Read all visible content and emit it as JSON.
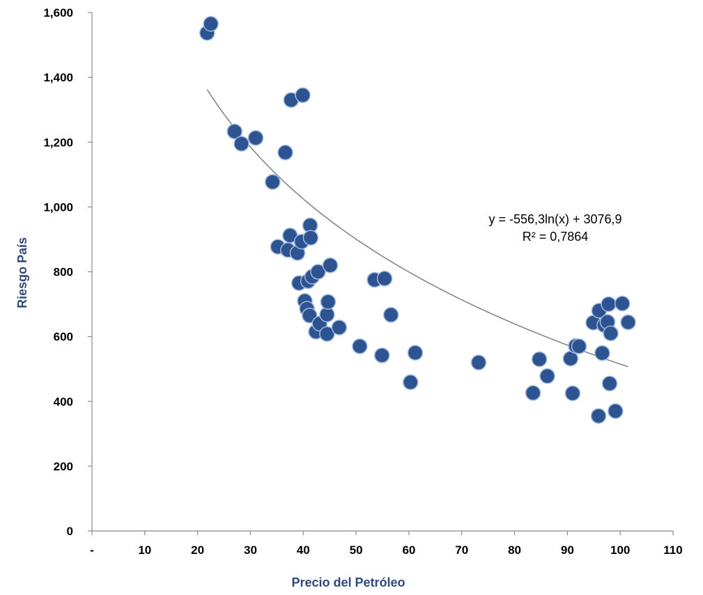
{
  "chart_data": {
    "type": "scatter",
    "title": "",
    "xlabel": "Precio del Petróleo",
    "ylabel": "Riesgo País",
    "xlim": [
      0,
      110
    ],
    "ylim": [
      0,
      1600
    ],
    "x_ticks": [
      0,
      10,
      20,
      30,
      40,
      50,
      60,
      70,
      80,
      90,
      100,
      110
    ],
    "x_tick_labels": [
      "-",
      "10",
      "20",
      "30",
      "40",
      "50",
      "60",
      "70",
      "80",
      "90",
      "100",
      "110"
    ],
    "y_ticks": [
      0,
      200,
      400,
      600,
      800,
      1000,
      1200,
      1400,
      1600
    ],
    "y_tick_labels": [
      "0",
      "200",
      "400",
      "600",
      "800",
      "1,000",
      "1,200",
      "1,400",
      "1,600"
    ],
    "grid": false,
    "marker_color": "#2D5490",
    "trendline_color": "#7F7F7F",
    "trendline": {
      "type": "logarithmic",
      "a": -556.3,
      "b": 3076.9,
      "x_range": [
        21.8,
        101.5
      ],
      "equation_label": "y = -556,3ln(x) + 3076,9",
      "r2_label": "R² = 0,7864"
    },
    "series": [
      {
        "points": [
          [
            21.8,
            1537
          ],
          [
            22.5,
            1565
          ],
          [
            27.0,
            1233
          ],
          [
            28.3,
            1195
          ],
          [
            31.0,
            1213
          ],
          [
            34.2,
            1077
          ],
          [
            35.2,
            877
          ],
          [
            36.6,
            1168
          ],
          [
            37.1,
            867
          ],
          [
            37.5,
            912
          ],
          [
            37.7,
            1330
          ],
          [
            38.9,
            858
          ],
          [
            39.2,
            765
          ],
          [
            39.7,
            893
          ],
          [
            39.9,
            1345
          ],
          [
            40.3,
            710
          ],
          [
            40.7,
            686
          ],
          [
            40.9,
            771
          ],
          [
            41.2,
            665
          ],
          [
            41.3,
            943
          ],
          [
            41.4,
            905
          ],
          [
            41.7,
            785
          ],
          [
            42.4,
            615
          ],
          [
            42.8,
            800
          ],
          [
            43.1,
            640
          ],
          [
            44.5,
            608
          ],
          [
            44.5,
            668
          ],
          [
            44.7,
            707
          ],
          [
            45.1,
            820
          ],
          [
            46.8,
            628
          ],
          [
            50.7,
            570
          ],
          [
            53.5,
            775
          ],
          [
            54.9,
            542
          ],
          [
            55.4,
            779
          ],
          [
            56.6,
            667
          ],
          [
            60.3,
            459
          ],
          [
            61.2,
            550
          ],
          [
            73.2,
            520
          ],
          [
            83.5,
            426
          ],
          [
            84.7,
            530
          ],
          [
            86.2,
            478
          ],
          [
            90.6,
            532
          ],
          [
            91.0,
            425
          ],
          [
            91.6,
            571
          ],
          [
            92.2,
            570
          ],
          [
            94.9,
            643
          ],
          [
            95.9,
            355
          ],
          [
            96.0,
            680
          ],
          [
            96.6,
            549
          ],
          [
            97.0,
            635
          ],
          [
            97.6,
            645
          ],
          [
            97.8,
            700
          ],
          [
            98.0,
            455
          ],
          [
            98.2,
            610
          ],
          [
            99.1,
            370
          ],
          [
            100.4,
            702
          ],
          [
            101.5,
            644
          ]
        ]
      }
    ]
  }
}
